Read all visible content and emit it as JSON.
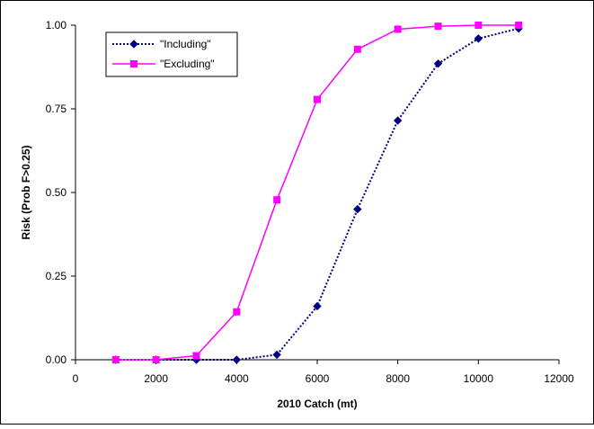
{
  "chart_data": {
    "type": "line",
    "title": "",
    "xlabel": "2010 Catch (mt)",
    "ylabel": "Risk (Prob F>0.25)",
    "xlim": [
      0,
      12000
    ],
    "ylim": [
      0,
      1
    ],
    "x_ticks": [
      0,
      2000,
      4000,
      6000,
      8000,
      10000,
      12000
    ],
    "y_ticks": [
      0,
      0.25,
      0.5,
      0.75,
      1
    ],
    "x_tick_labels": [
      "0",
      "2000",
      "4000",
      "6000",
      "8000",
      "10000",
      "12000"
    ],
    "y_tick_labels": [
      "0.00",
      "0.25",
      "0.50",
      "0.75",
      "1.00"
    ],
    "grid": false,
    "legend_position": "top-left",
    "series": [
      {
        "name": "\"Including\"",
        "color": "#000080",
        "line_style": "dotted",
        "marker": "diamond",
        "x": [
          1000,
          2000,
          3000,
          4000,
          5000,
          6000,
          7000,
          8000,
          9000,
          10000,
          11000
        ],
        "y": [
          0.0,
          0.0,
          0.0,
          0.0,
          0.015,
          0.16,
          0.45,
          0.715,
          0.885,
          0.96,
          0.99
        ]
      },
      {
        "name": "\"Excluding\"",
        "color": "#ff00ff",
        "line_style": "solid",
        "marker": "square",
        "x": [
          1000,
          2000,
          3000,
          4000,
          5000,
          6000,
          7000,
          8000,
          9000,
          10000,
          11000
        ],
        "y": [
          0.0,
          0.0,
          0.012,
          0.143,
          0.478,
          0.778,
          0.928,
          0.988,
          0.997,
          1.0,
          1.0
        ]
      }
    ]
  }
}
